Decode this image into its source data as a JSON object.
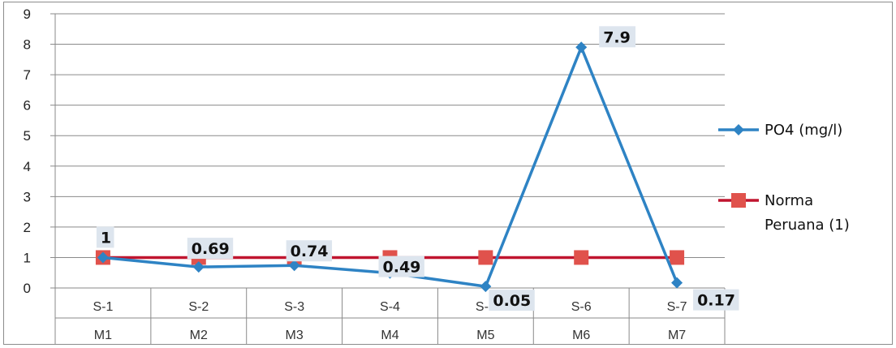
{
  "chart_data": {
    "type": "line",
    "categories": [
      [
        "S-1",
        "M1"
      ],
      [
        "S-2",
        "M2"
      ],
      [
        "S-3",
        "M3"
      ],
      [
        "S-4",
        "M4"
      ],
      [
        "S-5",
        "M5"
      ],
      [
        "S-6",
        "M6"
      ],
      [
        "S-7",
        "M7"
      ]
    ],
    "series": [
      {
        "name": "PO4 (mg/l)",
        "values": [
          1,
          0.69,
          0.74,
          0.49,
          0.05,
          7.9,
          0.17
        ],
        "data_labels": [
          "1",
          "0.69",
          "0.74",
          "0.49",
          "0.05",
          "7.9",
          "0.17"
        ],
        "color": "#2e83c4",
        "marker": "diamond"
      },
      {
        "name": "Norma Peruana (1)",
        "values": [
          1,
          1,
          1,
          1,
          1,
          1,
          1
        ],
        "color": "#c0152f",
        "marker_color": "#e0524c",
        "marker": "square"
      }
    ],
    "ylim": [
      0,
      9
    ],
    "yticks": [
      0,
      1,
      2,
      3,
      4,
      5,
      6,
      7,
      8,
      9
    ],
    "grid": true,
    "legend": "right",
    "label_bg": "#dde5ee"
  }
}
